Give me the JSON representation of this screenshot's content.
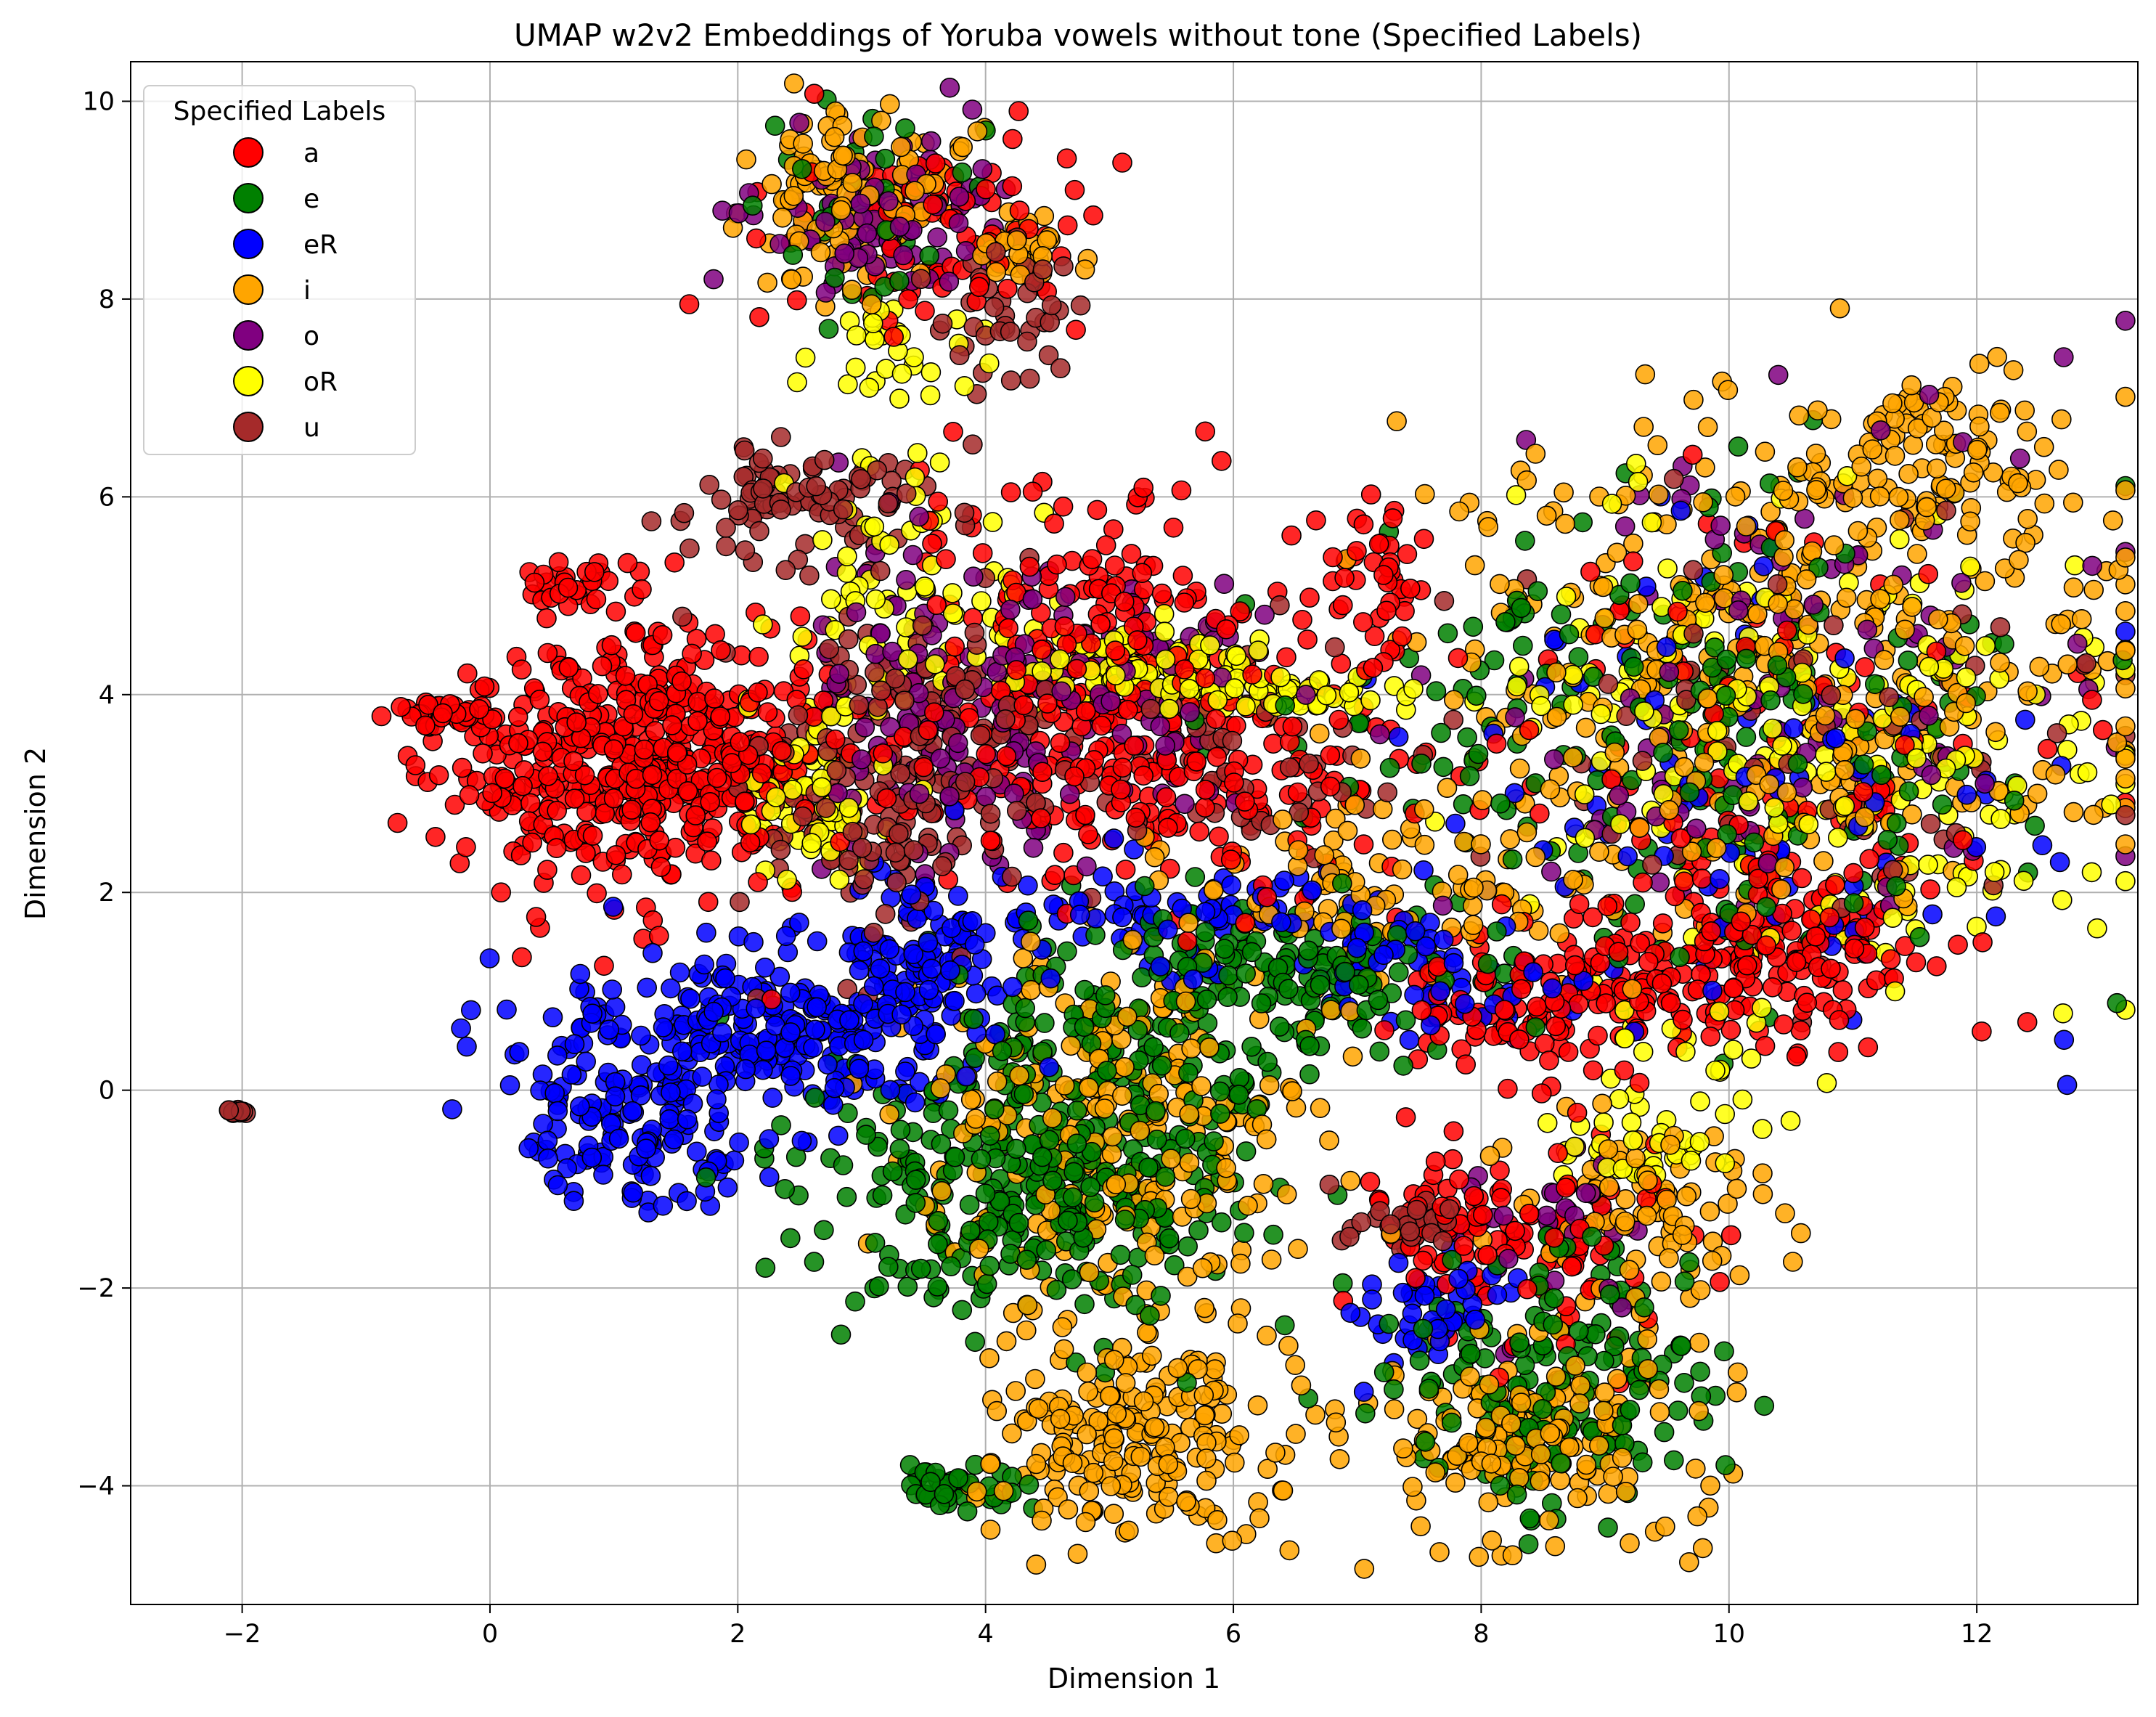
{
  "chart_data": {
    "type": "scatter",
    "title": "UMAP w2v2 Embeddings of Yoruba vowels without tone (Specified Labels)",
    "xlabel": "Dimension 1",
    "ylabel": "Dimension 2",
    "xlim": [
      -2.9,
      13.3
    ],
    "ylim": [
      -5.2,
      10.4
    ],
    "xticks": [
      -2,
      0,
      2,
      4,
      6,
      8,
      10,
      12
    ],
    "xtick_labels": [
      "−2",
      "0",
      "2",
      "4",
      "6",
      "8",
      "10",
      "12"
    ],
    "yticks": [
      -4,
      -2,
      0,
      2,
      4,
      6,
      8,
      10
    ],
    "ytick_labels": [
      "−4",
      "−2",
      "0",
      "2",
      "4",
      "6",
      "8",
      "10"
    ],
    "grid": true,
    "legend": {
      "title": "Specified Labels",
      "placement": "upper-left",
      "entries": [
        {
          "label": "a",
          "color": "#ff0000"
        },
        {
          "label": "e",
          "color": "#008000"
        },
        {
          "label": "eR",
          "color": "#0000ff"
        },
        {
          "label": "i",
          "color": "#ffa500"
        },
        {
          "label": "o",
          "color": "#800080"
        },
        {
          "label": "oR",
          "color": "#ffff00"
        },
        {
          "label": "u",
          "color": "#a52a2a"
        }
      ]
    },
    "series": [
      {
        "name": "a",
        "color": "#ff0000",
        "clusters": [
          {
            "center": [
              1.2,
              3.3
            ],
            "spread": [
              0.8,
              0.65
            ],
            "n": 520
          },
          {
            "center": [
              -0.35,
              3.8
            ],
            "spread": [
              0.22,
              0.06
            ],
            "n": 35
          },
          {
            "center": [
              0.7,
              5.15
            ],
            "spread": [
              0.3,
              0.12
            ],
            "n": 30
          },
          {
            "center": [
              3.6,
              8.7
            ],
            "spread": [
              0.6,
              0.5
            ],
            "n": 90
          },
          {
            "center": [
              4.8,
              4.9
            ],
            "spread": [
              0.7,
              0.7
            ],
            "n": 150
          },
          {
            "center": [
              5.5,
              3.2
            ],
            "spread": [
              1.0,
              0.6
            ],
            "n": 220
          },
          {
            "center": [
              7.1,
              5.0
            ],
            "spread": [
              0.25,
              0.5
            ],
            "n": 45
          },
          {
            "center": [
              9.2,
              1.0
            ],
            "spread": [
              0.8,
              0.4
            ],
            "n": 140
          },
          {
            "center": [
              10.5,
              1.6
            ],
            "spread": [
              0.6,
              0.4
            ],
            "n": 120
          },
          {
            "center": [
              8.0,
              0.8
            ],
            "spread": [
              0.4,
              0.2
            ],
            "n": 40
          },
          {
            "center": [
              7.8,
              -1.3
            ],
            "spread": [
              0.4,
              0.25
            ],
            "n": 60
          },
          {
            "center": [
              8.6,
              -1.6
            ],
            "spread": [
              0.6,
              0.6
            ],
            "n": 60
          },
          {
            "center": [
              10.5,
              3.2
            ],
            "spread": [
              1.2,
              1.3
            ],
            "n": 110
          }
        ]
      },
      {
        "name": "e",
        "color": "#008000",
        "clusters": [
          {
            "center": [
              4.3,
              -1.0
            ],
            "spread": [
              0.9,
              0.7
            ],
            "n": 320
          },
          {
            "center": [
              5.2,
              0.5
            ],
            "spread": [
              0.8,
              0.6
            ],
            "n": 120
          },
          {
            "center": [
              6.6,
              1.1
            ],
            "spread": [
              0.8,
              0.4
            ],
            "n": 120
          },
          {
            "center": [
              8.6,
              -2.8
            ],
            "spread": [
              0.6,
              0.7
            ],
            "n": 160
          },
          {
            "center": [
              3.8,
              -4.0
            ],
            "spread": [
              0.3,
              0.12
            ],
            "n": 40
          },
          {
            "center": [
              9.8,
              3.5
            ],
            "spread": [
              1.4,
              1.3
            ],
            "n": 220
          },
          {
            "center": [
              3.0,
              8.9
            ],
            "spread": [
              0.5,
              0.4
            ],
            "n": 40
          }
        ]
      },
      {
        "name": "eR",
        "color": "#0000ff",
        "clusters": [
          {
            "center": [
              2.2,
              0.6
            ],
            "spread": [
              0.9,
              0.4
            ],
            "n": 260
          },
          {
            "center": [
              1.2,
              -0.5
            ],
            "spread": [
              0.5,
              0.35
            ],
            "n": 120
          },
          {
            "center": [
              3.4,
              1.3
            ],
            "spread": [
              0.4,
              0.4
            ],
            "n": 110
          },
          {
            "center": [
              5.8,
              1.8
            ],
            "spread": [
              0.9,
              0.3
            ],
            "n": 90
          },
          {
            "center": [
              7.5,
              -2.2
            ],
            "spread": [
              0.4,
              0.25
            ],
            "n": 50
          },
          {
            "center": [
              7.8,
              1.1
            ],
            "spread": [
              0.6,
              0.3
            ],
            "n": 50
          },
          {
            "center": [
              10.2,
              3.2
            ],
            "spread": [
              1.4,
              1.3
            ],
            "n": 90
          }
        ]
      },
      {
        "name": "i",
        "color": "#ffa500",
        "clusters": [
          {
            "center": [
              5.1,
              -0.4
            ],
            "spread": [
              0.8,
              0.9
            ],
            "n": 260
          },
          {
            "center": [
              5.3,
              -3.5
            ],
            "spread": [
              0.6,
              0.55
            ],
            "n": 220
          },
          {
            "center": [
              8.4,
              -3.5
            ],
            "spread": [
              0.6,
              0.5
            ],
            "n": 170
          },
          {
            "center": [
              9.3,
              -1.3
            ],
            "spread": [
              0.5,
              0.6
            ],
            "n": 90
          },
          {
            "center": [
              10.5,
              4.4
            ],
            "spread": [
              1.4,
              1.2
            ],
            "n": 380
          },
          {
            "center": [
              11.6,
              6.4
            ],
            "spread": [
              0.5,
              0.4
            ],
            "n": 90
          },
          {
            "center": [
              2.9,
              9.0
            ],
            "spread": [
              0.45,
              0.45
            ],
            "n": 120
          },
          {
            "center": [
              4.3,
              8.5
            ],
            "spread": [
              0.3,
              0.2
            ],
            "n": 30
          },
          {
            "center": [
              7.3,
              2.0
            ],
            "spread": [
              1.0,
              0.5
            ],
            "n": 110
          }
        ]
      },
      {
        "name": "o",
        "color": "#800080",
        "clusters": [
          {
            "center": [
              3.6,
              3.8
            ],
            "spread": [
              0.7,
              0.9
            ],
            "n": 130
          },
          {
            "center": [
              3.2,
              8.8
            ],
            "spread": [
              0.5,
              0.45
            ],
            "n": 80
          },
          {
            "center": [
              10.5,
              4.0
            ],
            "spread": [
              1.4,
              1.3
            ],
            "n": 110
          },
          {
            "center": [
              5.2,
              4.2
            ],
            "spread": [
              0.6,
              0.6
            ],
            "n": 60
          },
          {
            "center": [
              8.6,
              -1.6
            ],
            "spread": [
              0.5,
              0.5
            ],
            "n": 30
          }
        ]
      },
      {
        "name": "oR",
        "color": "#ffff00",
        "clusters": [
          {
            "center": [
              2.6,
              3.0
            ],
            "spread": [
              0.25,
              0.45
            ],
            "n": 70
          },
          {
            "center": [
              3.3,
              5.0
            ],
            "spread": [
              0.5,
              0.6
            ],
            "n": 70
          },
          {
            "center": [
              5.2,
              4.3
            ],
            "spread": [
              0.6,
              0.2
            ],
            "n": 110
          },
          {
            "center": [
              6.4,
              4.0
            ],
            "spread": [
              0.6,
              0.12
            ],
            "n": 60
          },
          {
            "center": [
              10.7,
              3.5
            ],
            "spread": [
              1.3,
              1.2
            ],
            "n": 220
          },
          {
            "center": [
              9.3,
              -0.6
            ],
            "spread": [
              0.35,
              0.25
            ],
            "n": 40
          },
          {
            "center": [
              3.3,
              7.5
            ],
            "spread": [
              0.3,
              0.3
            ],
            "n": 30
          },
          {
            "center": [
              9.8,
              0.3
            ],
            "spread": [
              0.4,
              0.3
            ],
            "n": 20
          }
        ]
      },
      {
        "name": "u",
        "color": "#a52a2a",
        "clusters": [
          {
            "center": [
              2.6,
              5.9
            ],
            "spread": [
              0.55,
              0.3
            ],
            "n": 90
          },
          {
            "center": [
              3.3,
              3.2
            ],
            "spread": [
              0.6,
              0.8
            ],
            "n": 200
          },
          {
            "center": [
              4.2,
              7.8
            ],
            "spread": [
              0.3,
              0.3
            ],
            "n": 40
          },
          {
            "center": [
              -2.05,
              -0.2
            ],
            "spread": [
              0.04,
              0.03
            ],
            "n": 10
          },
          {
            "center": [
              7.3,
              -1.3
            ],
            "spread": [
              0.25,
              0.15
            ],
            "n": 30
          },
          {
            "center": [
              10.6,
              3.6
            ],
            "spread": [
              1.2,
              1.2
            ],
            "n": 70
          },
          {
            "center": [
              6.0,
              3.5
            ],
            "spread": [
              0.8,
              0.5
            ],
            "n": 60
          }
        ]
      }
    ]
  }
}
